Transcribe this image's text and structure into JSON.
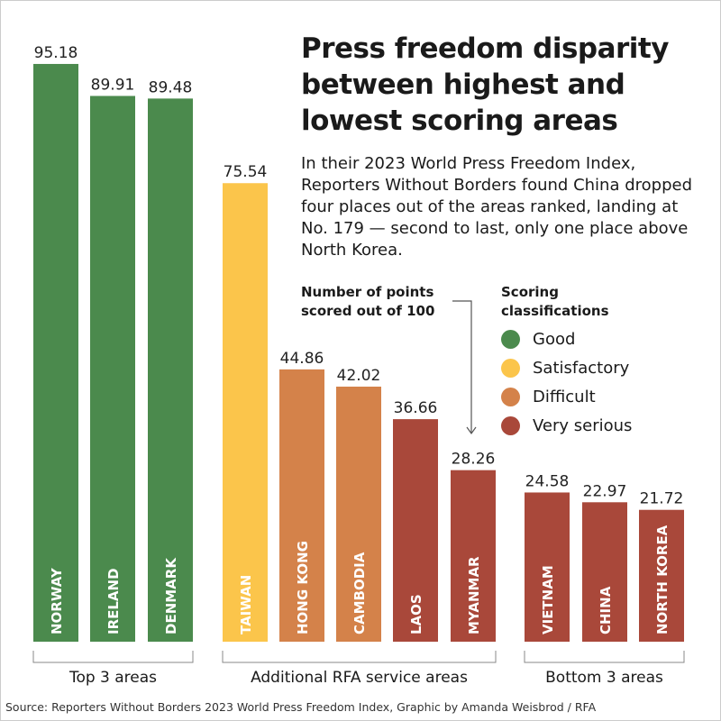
{
  "title": "Press freedom disparity between highest and lowest scoring areas",
  "description": "In their 2023 World Press Freedom Index, Reporters Without Borders found China dropped four places out of the areas ranked, landing at No. 179 — second to last, only one place above North Korea.",
  "points_note": [
    "Number of points",
    "scored out of 100"
  ],
  "legend": {
    "title": [
      "Scoring",
      "classifications"
    ],
    "items": [
      {
        "label": "Good",
        "color": "#4b8a4d"
      },
      {
        "label": "Satisfactory",
        "color": "#fbc54b"
      },
      {
        "label": "Difficult",
        "color": "#d4824a"
      },
      {
        "label": "Very serious",
        "color": "#a9483a"
      }
    ]
  },
  "source": "Source: Reporters Without Borders 2023 World Press Freedom Index, Graphic by Amanda Weisbrod / RFA",
  "chart_data": {
    "type": "bar",
    "ylim": [
      0,
      100
    ],
    "categories": [
      "NORWAY",
      "IRELAND",
      "DENMARK",
      "TAIWAN",
      "HONG KONG",
      "CAMBODIA",
      "LAOS",
      "MYANMAR",
      "VIETNAM",
      "CHINA",
      "NORTH KOREA"
    ],
    "values": [
      95.18,
      89.91,
      89.48,
      75.54,
      44.86,
      42.02,
      36.66,
      28.26,
      24.58,
      22.97,
      21.72
    ],
    "value_labels": [
      "95.18",
      "89.91",
      "89.48",
      "75.54",
      "44.86",
      "42.02",
      "36.66",
      "28.26",
      "24.58",
      "22.97",
      "21.72"
    ],
    "classification": [
      "Good",
      "Good",
      "Good",
      "Satisfactory",
      "Difficult",
      "Difficult",
      "Very serious",
      "Very serious",
      "Very serious",
      "Very serious",
      "Very serious"
    ],
    "groups": [
      {
        "label": "Top 3 areas",
        "members": [
          "NORWAY",
          "IRELAND",
          "DENMARK"
        ]
      },
      {
        "label": "Additional RFA service areas",
        "members": [
          "TAIWAN",
          "HONG KONG",
          "CAMBODIA",
          "LAOS",
          "MYANMAR"
        ]
      },
      {
        "label": "Bottom 3 areas",
        "members": [
          "VIETNAM",
          "CHINA",
          "NORTH KOREA"
        ]
      }
    ]
  }
}
